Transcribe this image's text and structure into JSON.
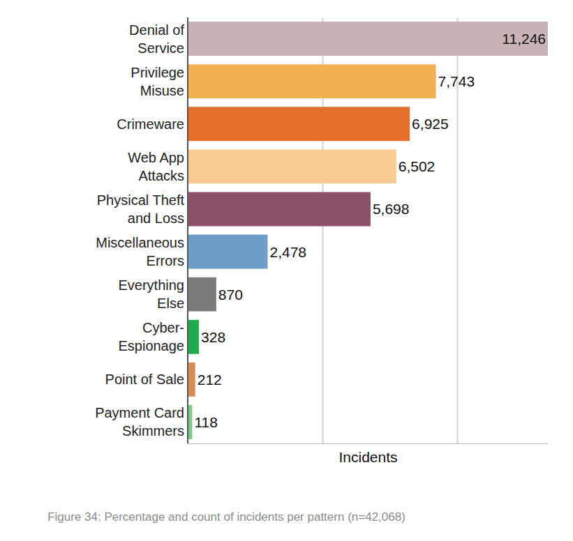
{
  "chart_data": {
    "type": "bar",
    "orientation": "horizontal",
    "title": "Figure 34: Percentage and count of incidents per pattern (n=42,068)",
    "x_label": "Incidents",
    "categories": [
      "Denial of Service",
      "Privilege Misuse",
      "Crimeware",
      "Web App Attacks",
      "Physical Theft and Loss",
      "Miscellaneous Errors",
      "Everything Else",
      "Cyber-Espionage",
      "Point of Sale",
      "Payment Card Skimmers"
    ],
    "values": [
      11246,
      7743,
      6925,
      6502,
      5698,
      2478,
      870,
      328,
      212,
      118
    ],
    "value_labels": [
      "11,246",
      "7,743",
      "6,925",
      "6,502",
      "5,698",
      "2,478",
      "870",
      "328",
      "212",
      "118"
    ],
    "colors": [
      "#c9b3b5",
      "#f2b24f",
      "#e46e2b",
      "#f7cb92",
      "#8b5068",
      "#6d9ec9",
      "#7b7b79",
      "#1fac4d",
      "#d88c55",
      "#7fc88a"
    ],
    "xlim": [
      0,
      11246
    ],
    "xticks": [
      4206.8,
      8413.6
    ],
    "grid": true,
    "data_labels": true,
    "tick_labels": "y"
  }
}
